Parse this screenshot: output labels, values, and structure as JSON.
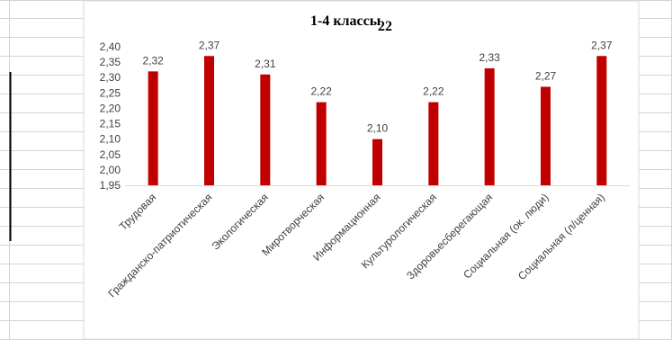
{
  "spreadsheet": {
    "cell_overlay_text": "22"
  },
  "chart_data": {
    "type": "bar",
    "title": "1-4 классы",
    "xlabel": "",
    "ylabel": "",
    "ylim": [
      1.95,
      2.4
    ],
    "yticks": [
      "1,95",
      "2,00",
      "2,05",
      "2,10",
      "2,15",
      "2,20",
      "2,25",
      "2,30",
      "2,35",
      "2,40"
    ],
    "categories": [
      "Трудовая",
      "Гражданско-патриотическая",
      "Экологическая",
      "Миротворческая",
      "Информационная",
      "Культурологическая",
      "Здоровьесберегающая",
      "Социальная (ок. люди)",
      "Социальная (л/ценная)"
    ],
    "values": [
      2.32,
      2.37,
      2.31,
      2.22,
      2.1,
      2.22,
      2.33,
      2.27,
      2.37
    ],
    "value_labels": [
      "2,32",
      "2,37",
      "2,31",
      "2,22",
      "2,10",
      "2,22",
      "2,33",
      "2,27",
      "2,37"
    ],
    "bar_color": "#c00000",
    "grid": false,
    "legend": "none"
  }
}
